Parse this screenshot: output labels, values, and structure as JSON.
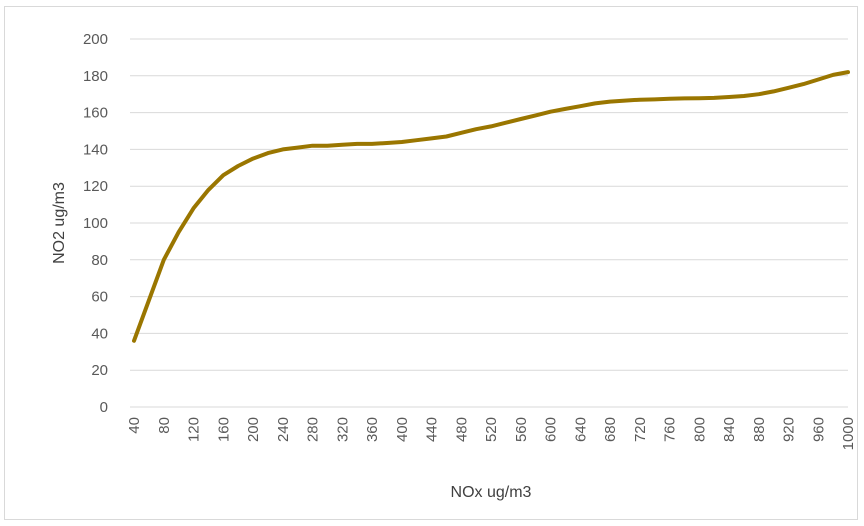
{
  "chart_data": {
    "type": "line",
    "title": "",
    "xlabel": "NOx ug/m3",
    "ylabel": "NO2  ug/m3",
    "x": [
      40,
      60,
      80,
      100,
      120,
      140,
      160,
      180,
      200,
      220,
      240,
      260,
      280,
      300,
      320,
      340,
      360,
      380,
      400,
      420,
      440,
      460,
      480,
      500,
      520,
      540,
      560,
      580,
      600,
      620,
      640,
      660,
      680,
      700,
      720,
      740,
      760,
      780,
      800,
      820,
      840,
      860,
      880,
      900,
      920,
      940,
      960,
      980,
      1000
    ],
    "series": [
      {
        "name": "",
        "color": "#9a7600",
        "values": [
          36,
          58,
          80,
          95,
          108,
          118,
          126,
          131,
          135,
          138,
          140,
          141,
          142,
          142,
          142.5,
          143,
          143,
          143.5,
          144,
          145,
          146,
          147,
          149,
          151,
          152.5,
          154.5,
          156.5,
          158.5,
          160.5,
          162,
          163.5,
          165,
          166,
          166.5,
          167,
          167.2,
          167.5,
          167.7,
          167.8,
          168,
          168.5,
          169,
          170,
          171.5,
          173.5,
          175.5,
          178,
          180.5,
          182
        ]
      }
    ],
    "xticks": [
      "40",
      "80",
      "120",
      "160",
      "200",
      "240",
      "280",
      "320",
      "360",
      "400",
      "440",
      "480",
      "520",
      "560",
      "600",
      "640",
      "680",
      "720",
      "760",
      "800",
      "840",
      "880",
      "920",
      "960",
      "1000"
    ],
    "yticks": [
      "0",
      "20",
      "40",
      "60",
      "80",
      "100",
      "120",
      "140",
      "160",
      "180",
      "200"
    ],
    "xlim": [
      40,
      1000
    ],
    "ylim": [
      0,
      200
    ],
    "grid": "horizontal",
    "legend": "none"
  }
}
